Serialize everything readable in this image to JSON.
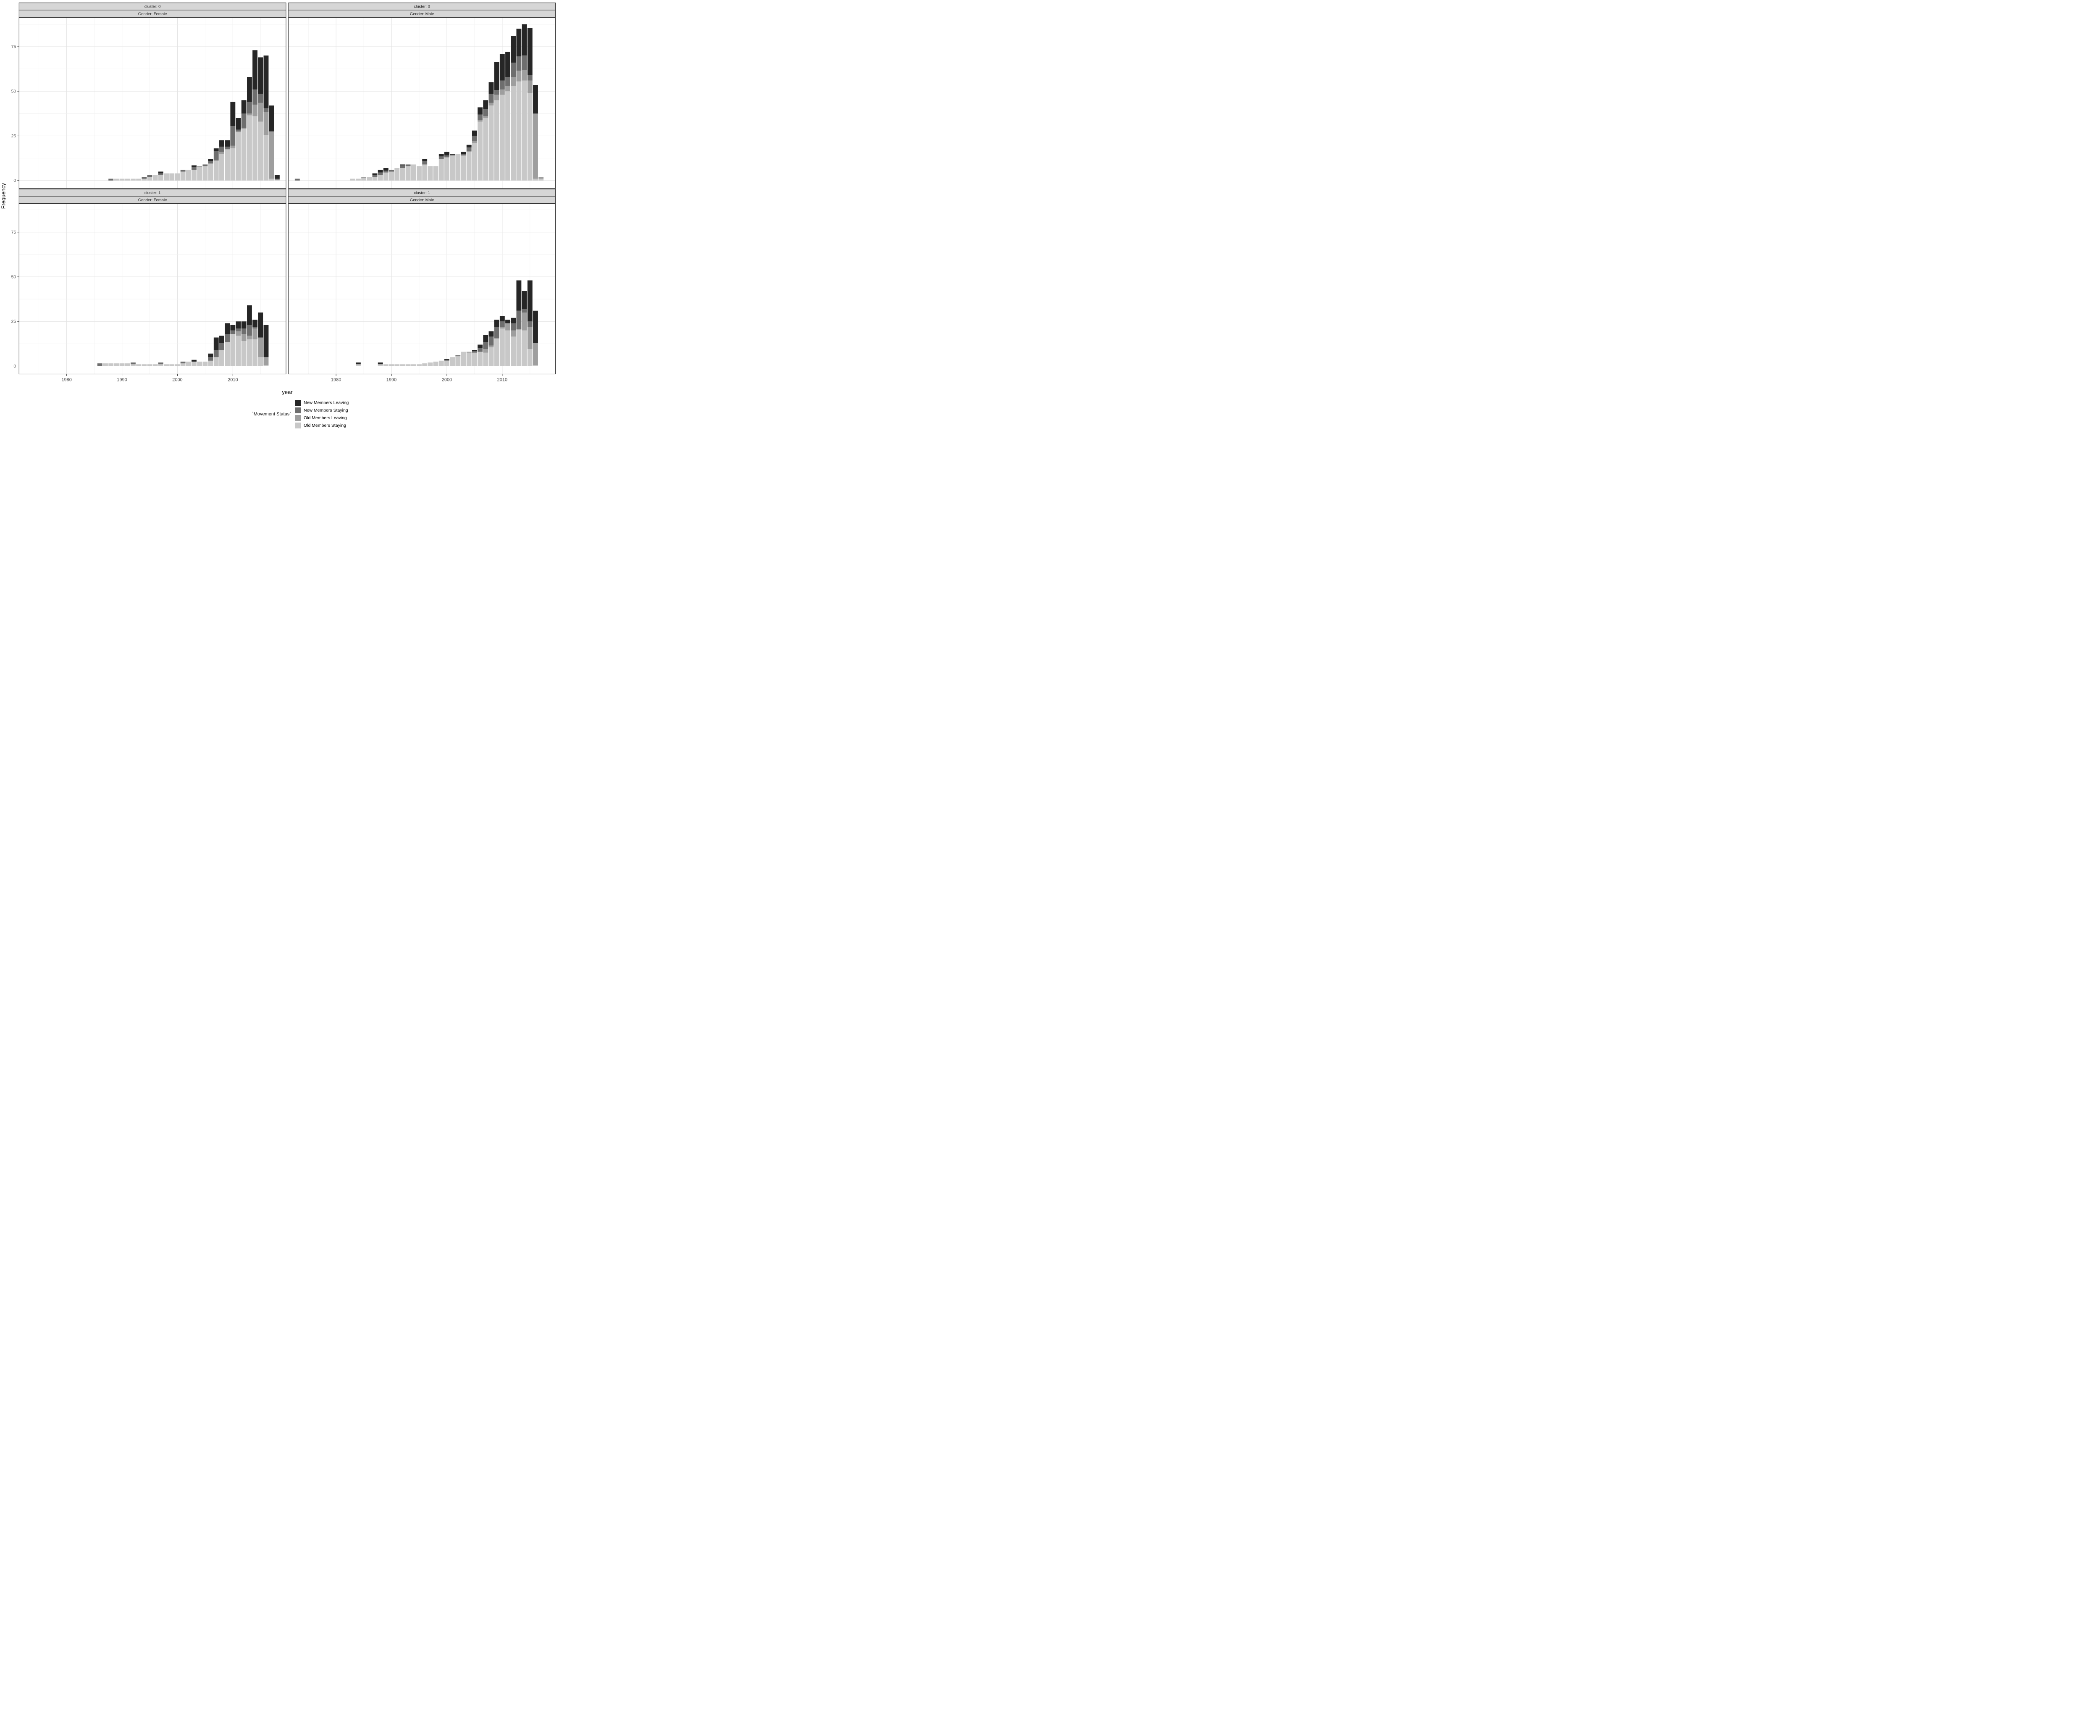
{
  "chart_data": {
    "type": "bar",
    "stacked": true,
    "title": "",
    "xlabel": "year",
    "ylabel": "Frequency",
    "x_ticks": [
      1980,
      1990,
      2000,
      2010
    ],
    "y_ticks": [
      0,
      25,
      50,
      75
    ],
    "x_minor_step": 5,
    "y_minor_step": 12.5,
    "x_domain": [
      1971.4,
      2019.6
    ],
    "y_domain": [
      -4.5,
      91.3
    ],
    "grid": true,
    "legend_position": "bottom",
    "legend_title": "`Movement Status`",
    "bar_format": [
      "year",
      "old_staying",
      "old_leaving",
      "new_staying",
      "new_leaving"
    ],
    "stack_order_bottom_to_top": [
      "old_staying",
      "old_leaving",
      "new_staying",
      "new_leaving"
    ],
    "legend": [
      {
        "key": "new_leaving",
        "label": "New Members Leaving",
        "color": "#262626"
      },
      {
        "key": "new_staying",
        "label": "New Members Staying",
        "color": "#6E6E6E"
      },
      {
        "key": "old_leaving",
        "label": "Old Members Leaving",
        "color": "#9E9E9E"
      },
      {
        "key": "old_staying",
        "label": "Old Members Staying",
        "color": "#C8C8C8"
      }
    ],
    "facets": [
      {
        "row_label": "cluster: 0",
        "col_label": "Gender: Female",
        "bars": [
          [
            1988,
            0,
            0,
            1,
            0
          ],
          [
            1989,
            1,
            0,
            0,
            0
          ],
          [
            1990,
            1,
            0,
            0,
            0
          ],
          [
            1991,
            1,
            0,
            0,
            0
          ],
          [
            1992,
            1,
            0,
            0,
            0
          ],
          [
            1993,
            1,
            0,
            0,
            0
          ],
          [
            1994,
            1,
            0,
            1,
            0
          ],
          [
            1995,
            2,
            0,
            1,
            0
          ],
          [
            1996,
            3,
            0,
            0,
            0
          ],
          [
            1997,
            3,
            0,
            1,
            1
          ],
          [
            1998,
            4,
            0,
            0,
            0
          ],
          [
            1999,
            4,
            0,
            0,
            0
          ],
          [
            2000,
            4,
            0,
            0,
            0
          ],
          [
            2001,
            5,
            0,
            1,
            0
          ],
          [
            2002,
            6,
            0,
            0,
            0
          ],
          [
            2003,
            6,
            0,
            1.5,
            1
          ],
          [
            2004,
            7.5,
            0.5,
            0,
            0
          ],
          [
            2005,
            8,
            0,
            1,
            0
          ],
          [
            2006,
            9.5,
            0,
            1.5,
            1
          ],
          [
            2007,
            11,
            0.5,
            5,
            1.5
          ],
          [
            2008,
            15,
            1,
            3,
            3.5
          ],
          [
            2009,
            17.5,
            0,
            1.5,
            3.5
          ],
          [
            2010,
            18,
            1.5,
            11,
            13.5
          ],
          [
            2011,
            27,
            0.5,
            1,
            6.5
          ],
          [
            2012,
            29,
            0.5,
            8,
            7.5
          ],
          [
            2013,
            36.5,
            1,
            6.5,
            14
          ],
          [
            2014,
            36,
            6.5,
            8.5,
            22
          ],
          [
            2015,
            33,
            10.5,
            5,
            20.5
          ],
          [
            2016,
            25.5,
            13,
            2,
            29.5
          ],
          [
            2017,
            1,
            26.5,
            0,
            14.5
          ],
          [
            2018,
            0.5,
            0,
            0.5,
            2
          ]
        ]
      },
      {
        "row_label": "cluster: 0",
        "col_label": "Gender: Male",
        "bars": [
          [
            1973,
            0,
            0,
            1,
            0
          ],
          [
            1983,
            1,
            0,
            0,
            0
          ],
          [
            1984,
            1,
            0,
            0,
            0
          ],
          [
            1985,
            1.5,
            0.5,
            0,
            0
          ],
          [
            1986,
            2,
            0,
            0,
            0
          ],
          [
            1987,
            2,
            0,
            1,
            1
          ],
          [
            1988,
            3,
            0,
            1.5,
            1.5
          ],
          [
            1989,
            4.5,
            0,
            1,
            1.5
          ],
          [
            1990,
            5,
            0,
            1,
            0
          ],
          [
            1991,
            7,
            0,
            0,
            0
          ],
          [
            1992,
            7,
            0,
            1.5,
            0.5
          ],
          [
            1993,
            8,
            0,
            1,
            0
          ],
          [
            1994,
            9,
            0,
            0,
            0
          ],
          [
            1995,
            8,
            0,
            0,
            0
          ],
          [
            1996,
            9,
            0,
            2,
            1
          ],
          [
            1997,
            8,
            0,
            0,
            0
          ],
          [
            1998,
            8,
            0,
            0,
            0
          ],
          [
            1999,
            12,
            0,
            1.5,
            1.5
          ],
          [
            2000,
            13,
            0,
            1,
            2
          ],
          [
            2001,
            14,
            0,
            0.5,
            0.5
          ],
          [
            2002,
            15,
            0,
            0,
            0
          ],
          [
            2003,
            14,
            0,
            1,
            1
          ],
          [
            2004,
            16,
            0.5,
            2,
            1.5
          ],
          [
            2005,
            21,
            1,
            3,
            3
          ],
          [
            2006,
            33,
            1,
            3,
            4
          ],
          [
            2007,
            35,
            1,
            4,
            5
          ],
          [
            2008,
            42,
            1.5,
            5,
            6.5
          ],
          [
            2009,
            45,
            3,
            2.5,
            16
          ],
          [
            2010,
            48,
            3,
            5,
            15
          ],
          [
            2011,
            50,
            3,
            5,
            14
          ],
          [
            2012,
            53,
            5,
            8,
            15
          ],
          [
            2013,
            55.5,
            6,
            8,
            15.5
          ],
          [
            2014,
            56,
            6,
            8,
            17.5
          ],
          [
            2015,
            49,
            7,
            3,
            26.5
          ],
          [
            2016,
            1,
            36.5,
            0,
            16
          ],
          [
            2017,
            1,
            1,
            0,
            0
          ]
        ]
      },
      {
        "row_label": "cluster: 1",
        "col_label": "Gender: Female",
        "bars": [
          [
            1986,
            0,
            0,
            1.5,
            0
          ],
          [
            1987,
            1.5,
            0,
            0,
            0
          ],
          [
            1988,
            1.5,
            0,
            0,
            0
          ],
          [
            1989,
            1.5,
            0,
            0,
            0
          ],
          [
            1990,
            1.5,
            0,
            0,
            0
          ],
          [
            1991,
            1.5,
            0,
            0,
            0
          ],
          [
            1992,
            1,
            0,
            1,
            0
          ],
          [
            1993,
            1,
            0,
            0,
            0
          ],
          [
            1994,
            1,
            0,
            0,
            0
          ],
          [
            1995,
            1,
            0,
            0,
            0
          ],
          [
            1996,
            1,
            0,
            0,
            0
          ],
          [
            1997,
            1,
            0,
            1,
            0
          ],
          [
            1998,
            1,
            0,
            0,
            0
          ],
          [
            1999,
            1,
            0,
            0,
            0
          ],
          [
            2000,
            1,
            0,
            0,
            0
          ],
          [
            2001,
            1.5,
            0,
            1,
            0
          ],
          [
            2002,
            2.5,
            0,
            0,
            0
          ],
          [
            2003,
            2.5,
            0,
            0,
            1
          ],
          [
            2004,
            2.5,
            0,
            0,
            0
          ],
          [
            2005,
            2.5,
            0,
            0,
            0
          ],
          [
            2006,
            3,
            0,
            2,
            2
          ],
          [
            2007,
            5,
            0,
            4,
            7
          ],
          [
            2008,
            9,
            0,
            4,
            4
          ],
          [
            2009,
            13.5,
            0,
            4.5,
            6
          ],
          [
            2010,
            18,
            0,
            2,
            3
          ],
          [
            2011,
            17,
            2.5,
            1.5,
            4
          ],
          [
            2012,
            14,
            4,
            3,
            4
          ],
          [
            2013,
            15,
            2,
            6,
            11
          ],
          [
            2014,
            15,
            6,
            1,
            4
          ],
          [
            2015,
            5,
            11,
            0,
            14
          ],
          [
            2016,
            0.5,
            4.5,
            0,
            18
          ]
        ]
      },
      {
        "row_label": "cluster: 1",
        "col_label": "Gender: Male",
        "bars": [
          [
            1984,
            1,
            0,
            0,
            1
          ],
          [
            1988,
            1,
            0,
            0,
            1
          ],
          [
            1989,
            1,
            0,
            0,
            0
          ],
          [
            1990,
            1,
            0,
            0,
            0
          ],
          [
            1991,
            1,
            0,
            0,
            0
          ],
          [
            1992,
            1,
            0,
            0,
            0
          ],
          [
            1993,
            1,
            0,
            0,
            0
          ],
          [
            1994,
            1,
            0,
            0,
            0
          ],
          [
            1995,
            1,
            0,
            0,
            0
          ],
          [
            1996,
            1.5,
            0,
            0,
            0
          ],
          [
            1997,
            2,
            0,
            0,
            0
          ],
          [
            1998,
            2.5,
            0,
            0,
            0
          ],
          [
            1999,
            3,
            0,
            0,
            0
          ],
          [
            2000,
            3,
            0,
            0.5,
            0.5
          ],
          [
            2001,
            5,
            0,
            0,
            0
          ],
          [
            2002,
            5.5,
            0,
            0.5,
            0
          ],
          [
            2003,
            8,
            0,
            0,
            0
          ],
          [
            2004,
            7.5,
            0.5,
            0,
            0
          ],
          [
            2005,
            7.5,
            0,
            1,
            0.5
          ],
          [
            2006,
            8,
            0,
            2,
            2
          ],
          [
            2007,
            7.5,
            2,
            4,
            4
          ],
          [
            2008,
            10.5,
            1,
            5,
            3
          ],
          [
            2009,
            15.5,
            0,
            6.5,
            4
          ],
          [
            2010,
            21,
            1,
            3,
            3
          ],
          [
            2011,
            20,
            4,
            0,
            2
          ],
          [
            2012,
            16.5,
            3.5,
            4,
            3
          ],
          [
            2013,
            20.5,
            0,
            10.5,
            17
          ],
          [
            2014,
            20,
            10,
            2,
            10
          ],
          [
            2015,
            9.5,
            12.5,
            3,
            23
          ],
          [
            2016,
            0.5,
            12.5,
            0,
            18
          ]
        ]
      }
    ],
    "style": {
      "strip_fill": "#D6D6D6",
      "strip_border": "#333333",
      "panel_border": "#333333",
      "grid_major_color": "#E3E3E3",
      "grid_minor_color": "#F0F0F0",
      "axis_text_color": "#4D4D4D",
      "tick_color": "#333333"
    }
  }
}
